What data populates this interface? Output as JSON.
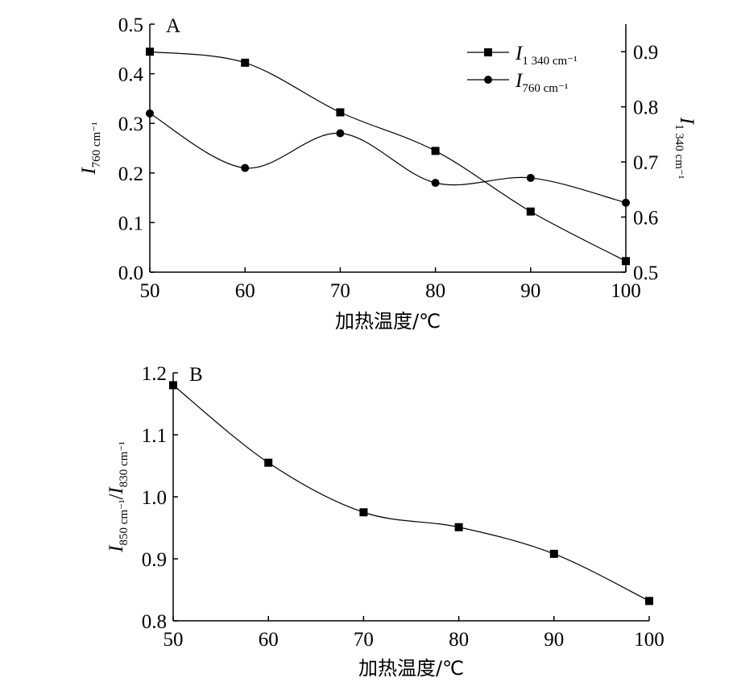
{
  "chart_data": [
    {
      "type": "line",
      "panel_label": "A",
      "xlabel": "加热温度/℃",
      "x": [
        50,
        60,
        70,
        80,
        90,
        100
      ],
      "xticks": [
        50,
        60,
        70,
        80,
        90,
        100
      ],
      "xlim": [
        50,
        100
      ],
      "ylabel_left": {
        "main": "I",
        "sub": "760 cm⁻¹"
      },
      "ylabel_right": {
        "main": "I",
        "sub": "1 340 cm⁻¹"
      },
      "ylim_left": [
        0.0,
        0.5
      ],
      "yticks_left": [
        "0.0",
        "0.1",
        "0.2",
        "0.3",
        "0.4",
        "0.5"
      ],
      "ylim_right": [
        0.5,
        0.95
      ],
      "yticks_right": [
        "0.5",
        "0.6",
        "0.7",
        "0.8",
        "0.9"
      ],
      "legend_position": "top-right",
      "grid": false,
      "series": [
        {
          "name_main": "I",
          "name_sub": "1 340 cm⁻¹",
          "marker": "square",
          "axis": "right",
          "values": [
            0.9,
            0.88,
            0.79,
            0.72,
            0.61,
            0.52
          ]
        },
        {
          "name_main": "I",
          "name_sub": "760 cm⁻¹",
          "marker": "circle",
          "axis": "left",
          "values": [
            0.32,
            0.21,
            0.28,
            0.18,
            0.19,
            0.14
          ]
        }
      ]
    },
    {
      "type": "line",
      "panel_label": "B",
      "xlabel": "加热温度/℃",
      "x": [
        50,
        60,
        70,
        80,
        90,
        100
      ],
      "xticks": [
        50,
        60,
        70,
        80,
        90,
        100
      ],
      "xlim": [
        50,
        100
      ],
      "ylabel": {
        "main1": "I",
        "sub1": "850 cm⁻¹",
        "sep": "/",
        "main2": "I",
        "sub2": "830 cm⁻¹"
      },
      "ylim": [
        0.8,
        1.2
      ],
      "yticks": [
        "0.8",
        "0.9",
        "1.0",
        "1.1",
        "1.2"
      ],
      "grid": false,
      "series": [
        {
          "marker": "square",
          "values": [
            1.18,
            1.055,
            0.975,
            0.951,
            0.908,
            0.832
          ]
        }
      ]
    }
  ]
}
